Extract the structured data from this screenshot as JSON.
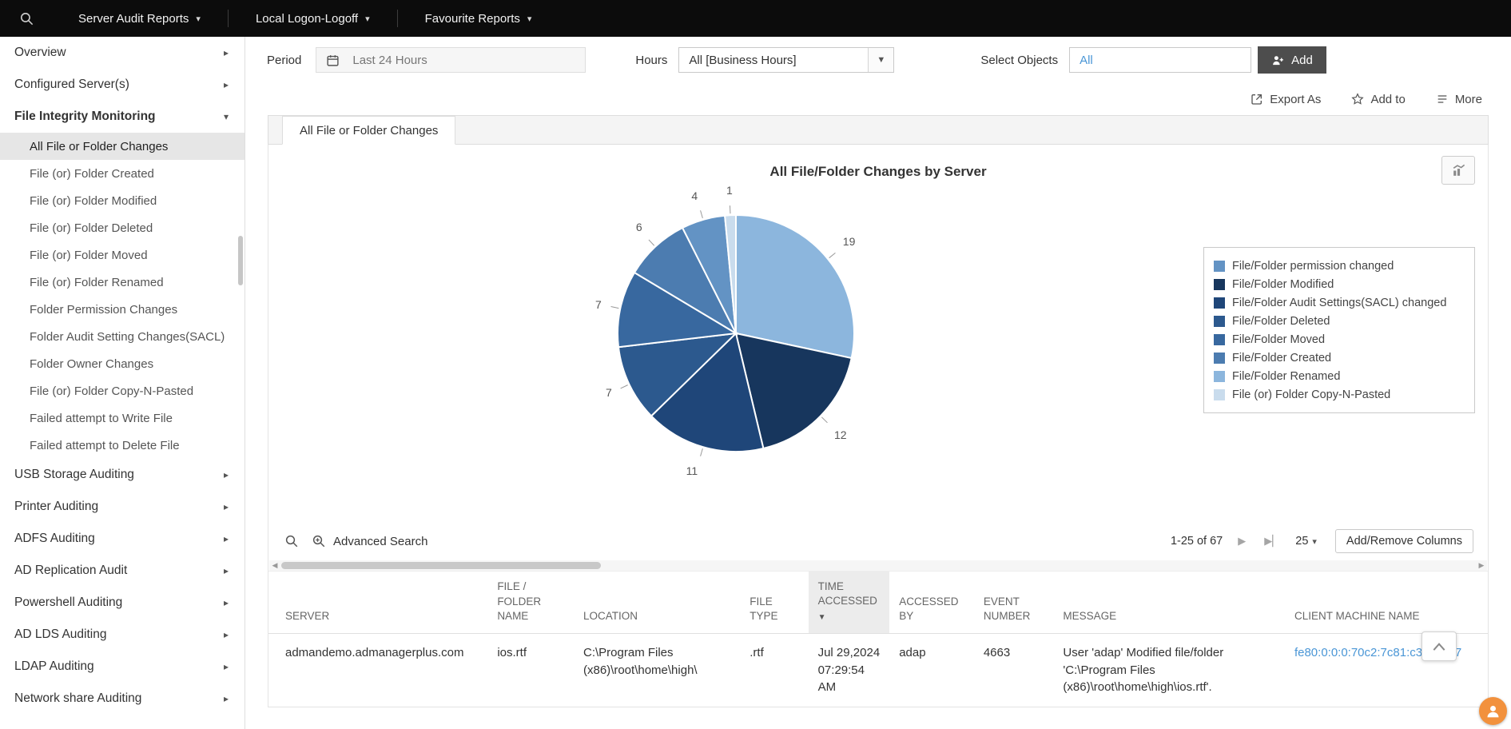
{
  "topbar": {
    "menus": [
      "Server Audit Reports",
      "Local Logon-Logoff",
      "Favourite Reports"
    ]
  },
  "sidebar": {
    "items": [
      {
        "label": "Overview"
      },
      {
        "label": "Configured Server(s)"
      },
      {
        "label": "File Integrity Monitoring",
        "expanded": true,
        "selected": "All File or Folder Changes",
        "children": [
          "All File or Folder Changes",
          "File (or) Folder Created",
          "File (or) Folder Modified",
          "File (or) Folder Deleted",
          "File (or) Folder Moved",
          "File (or) Folder Renamed",
          "Folder Permission Changes",
          "Folder Audit Setting Changes(SACL)",
          "Folder Owner Changes",
          "File (or) Folder Copy-N-Pasted",
          "Failed attempt to Write File",
          "Failed attempt to Delete File"
        ]
      },
      {
        "label": "USB Storage Auditing"
      },
      {
        "label": "Printer Auditing"
      },
      {
        "label": "ADFS Auditing"
      },
      {
        "label": "AD Replication Audit"
      },
      {
        "label": "Powershell Auditing"
      },
      {
        "label": "AD LDS Auditing"
      },
      {
        "label": "LDAP Auditing"
      },
      {
        "label": "Network share Auditing"
      }
    ]
  },
  "filters": {
    "period": {
      "label": "Period",
      "value": "Last 24 Hours"
    },
    "hours": {
      "label": "Hours",
      "value": "All [Business Hours]"
    },
    "select_objects": {
      "label": "Select Objects",
      "value": "All"
    },
    "add_button": "Add"
  },
  "actions": {
    "export_as": "Export As",
    "add_to": "Add to",
    "more": "More"
  },
  "tab": {
    "label": "All File or Folder Changes"
  },
  "chart_data": {
    "type": "pie",
    "title": "All File/Folder Changes by Server",
    "slices_clockwise_from_top": [
      {
        "label": "File/Folder Renamed",
        "value": 19,
        "color": "#8cb6dd"
      },
      {
        "label": "File/Folder Modified",
        "value": 12,
        "color": "#17365d"
      },
      {
        "label": "File/Folder Audit Settings(SACL) changed",
        "value": 11,
        "color": "#1f4679"
      },
      {
        "label": "File/Folder Deleted",
        "value": 7,
        "color": "#2c598e"
      },
      {
        "label": "File/Folder Moved",
        "value": 7,
        "color": "#38689f"
      },
      {
        "label": "File/Folder Created",
        "value": 6,
        "color": "#4c7cb0"
      },
      {
        "label": "File/Folder permission changed",
        "value": 4,
        "color": "#6393c4"
      },
      {
        "label": "File (or) Folder Copy-N-Pasted",
        "value": 1,
        "color": "#c9dced"
      }
    ],
    "legend_order": [
      "File/Folder permission changed",
      "File/Folder Modified",
      "File/Folder Audit Settings(SACL) changed",
      "File/Folder Deleted",
      "File/Folder Moved",
      "File/Folder Created",
      "File/Folder Renamed",
      "File (or) Folder Copy-N-Pasted"
    ]
  },
  "toolbar": {
    "advanced_search": "Advanced Search",
    "pagination_range": "1-25 of 67",
    "page_size": "25",
    "add_remove_columns": "Add/Remove Columns"
  },
  "table": {
    "sort": {
      "column": "TIME ACCESSED",
      "direction": "desc"
    },
    "columns": [
      {
        "key": "server",
        "label": "SERVER"
      },
      {
        "key": "file_folder_name",
        "label": "FILE / FOLDER NAME"
      },
      {
        "key": "location",
        "label": "LOCATION"
      },
      {
        "key": "file_type",
        "label": "FILE TYPE"
      },
      {
        "key": "time_accessed",
        "label": "TIME ACCESSED"
      },
      {
        "key": "accessed_by",
        "label": "ACCESSED BY"
      },
      {
        "key": "event_number",
        "label": "EVENT NUMBER"
      },
      {
        "key": "message",
        "label": "MESSAGE"
      },
      {
        "key": "client_machine_name",
        "label": "CLIENT MACHINE NAME"
      }
    ],
    "rows": [
      {
        "server": "admandemo.admanagerplus.com",
        "file_folder_name": "ios.rtf",
        "location": "C:\\Program Files (x86)\\root\\home\\high\\",
        "file_type": ".rtf",
        "time_accessed": "Jul 29,2024 07:29:54 AM",
        "accessed_by": "adap",
        "event_number": "4663",
        "message": "User 'adap' Modified file/folder 'C:\\Program Files (x86)\\root\\home\\high\\ios.rtf'.",
        "client_machine_name": "fe80:0:0:0:70c2:7c81:c35f:29c7"
      }
    ]
  },
  "colors": {
    "topbar_bg": "#0c0c0c",
    "accent_blue": "#4a96d6",
    "add_button_bg": "#4d4d4d",
    "selected_item_bg": "#e6e6e6",
    "assistant_bubble": "#f2913d"
  }
}
